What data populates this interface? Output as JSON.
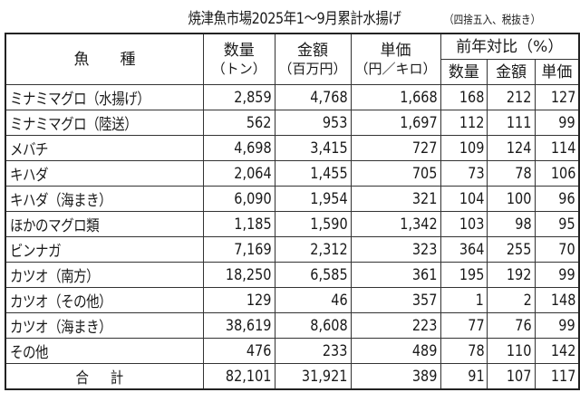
{
  "title": "焼津魚市場2025年1～9月累計水揚げ",
  "note": "（四捨五入、税抜き）",
  "headers": {
    "fish": "魚　　種",
    "quantity": "数量",
    "quantity_unit": "（トン）",
    "amount": "金額",
    "amount_unit": "（百万円）",
    "unit_price": "単価",
    "unit_price_unit": "（円／キロ）",
    "yoy": "前年対比（%）",
    "yoy_quantity": "数量",
    "yoy_amount": "金額",
    "yoy_unit_price": "単価"
  },
  "rows": [
    [
      "ミナミマグロ（水揚げ）",
      "2,859",
      "4,768",
      "1,668",
      "168",
      "212",
      "127"
    ],
    [
      "ミナミマグロ（陸送）",
      "562",
      "953",
      "1,697",
      "112",
      "111",
      "99"
    ],
    [
      "メバチ",
      "4,698",
      "3,415",
      "727",
      "109",
      "124",
      "114"
    ],
    [
      "キハダ",
      "2,064",
      "1,455",
      "705",
      "73",
      "78",
      "106"
    ],
    [
      "キハダ（海まき）",
      "6,090",
      "1,954",
      "321",
      "104",
      "100",
      "96"
    ],
    [
      "ほかのマグロ類",
      "1,185",
      "1,590",
      "1,342",
      "103",
      "98",
      "95"
    ],
    [
      "ビンナガ",
      "7,169",
      "2,312",
      "323",
      "364",
      "255",
      "70"
    ],
    [
      "カツオ（南方）",
      "18,250",
      "6,585",
      "361",
      "195",
      "192",
      "99"
    ],
    [
      "カツオ（その他）",
      "129",
      "46",
      "357",
      "1",
      "2",
      "148"
    ],
    [
      "カツオ（海まき）",
      "38,619",
      "8,608",
      "223",
      "77",
      "76",
      "99"
    ],
    [
      "その他",
      "476",
      "233",
      "489",
      "78",
      "110",
      "142"
    ]
  ],
  "total": [
    "合計",
    "82,101",
    "31,921",
    "389",
    "91",
    "107",
    "117"
  ]
}
